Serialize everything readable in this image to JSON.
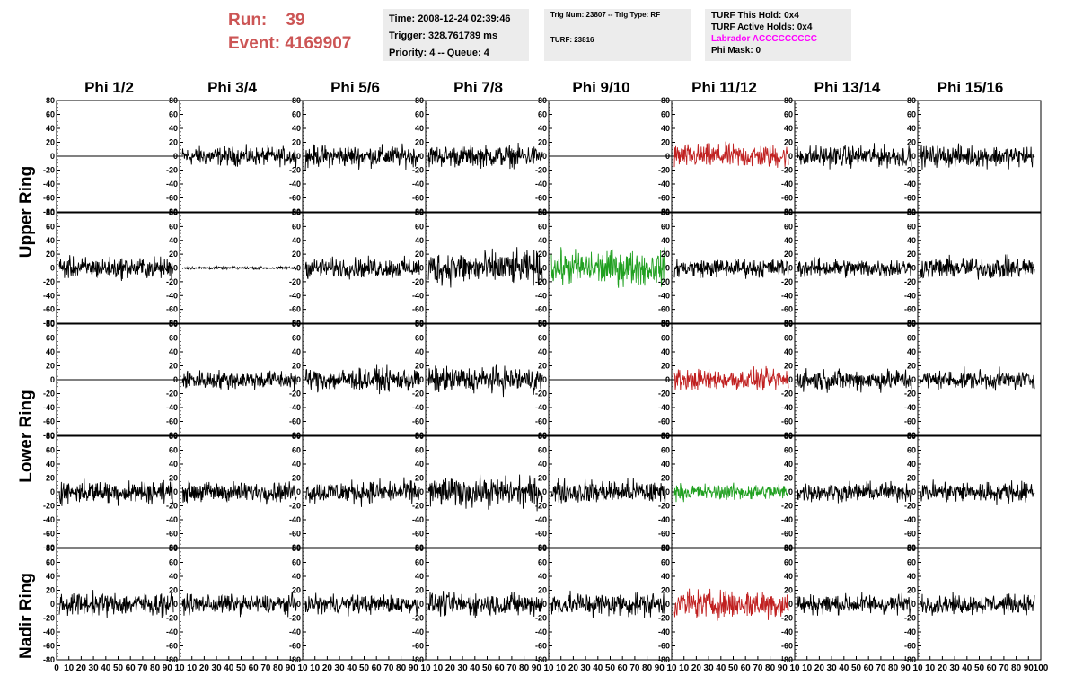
{
  "run": {
    "run_label": "Run:",
    "run_value": "39",
    "event_label": "Event:",
    "event_value": "4169907"
  },
  "info1": {
    "time": "Time: 2008-12-24 02:39:46",
    "trigger": "Trigger: 328.761789 ms",
    "priority": "Priority: 4 -- Queue: 4"
  },
  "info2": {
    "trig": "Trig Num: 23807 -- Trig Type: RF",
    "turf": "TURF: 23816"
  },
  "info3": {
    "hold": "TURF This Hold: 0x4",
    "active": "TURF Active Holds: 0x4",
    "labrador": "Labrador ACCCCCCCCC",
    "mask": "Phi Mask: 0"
  },
  "phi_headers": [
    "Phi 1/2",
    "Phi 3/4",
    "Phi 5/6",
    "Phi 7/8",
    "Phi 9/10",
    "Phi 11/12",
    "Phi 13/14",
    "Phi 15/16"
  ],
  "ring_labels": {
    "upper": "Upper Ring",
    "lower": "Lower Ring",
    "nadir": "Nadir Ring"
  },
  "colors": {
    "run_text": "#cc5555",
    "labrador": "#ff00ff",
    "trace": "#000000",
    "red_trace": "#c02020",
    "green_trace": "#20a020",
    "info_bg": "#ececec"
  },
  "axis": {
    "y_ticks": [
      "80",
      "60",
      "40",
      "20",
      "0",
      "-20",
      "-40",
      "-60",
      "-80"
    ],
    "x_ticks_first": [
      "0",
      "10",
      "20",
      "30",
      "40",
      "50",
      "60",
      "70",
      "80",
      "90",
      "10"
    ],
    "x_ticks": [
      "10",
      "20",
      "30",
      "40",
      "50",
      "60",
      "70",
      "80",
      "90",
      "10"
    ],
    "x_ticks_last": [
      "10",
      "20",
      "30",
      "40",
      "50",
      "60",
      "70",
      "80",
      "90",
      "100"
    ],
    "ylim": [
      -80,
      80
    ],
    "xlim": [
      0,
      100
    ]
  },
  "chart_data": {
    "type": "line",
    "title": "",
    "xlabel": "",
    "ylabel": "",
    "ylim": [
      -80,
      80
    ],
    "xlim": [
      0,
      100
    ],
    "rows": [
      "Upper Ring top",
      "Upper Ring bottom",
      "Lower Ring top",
      "Lower Ring bottom",
      "Nadir Ring"
    ],
    "columns": [
      "Phi 1/2",
      "Phi 3/4",
      "Phi 5/6",
      "Phi 7/8",
      "Phi 9/10",
      "Phi 11/12",
      "Phi 13/14",
      "Phi 15/16"
    ],
    "panels": [
      [
        {
          "style": "flat",
          "amp": 0,
          "color": "trace"
        },
        {
          "style": "noise",
          "amp": 14,
          "color": "trace"
        },
        {
          "style": "noise",
          "amp": 16,
          "color": "trace"
        },
        {
          "style": "noise",
          "amp": 16,
          "color": "trace"
        },
        {
          "style": "flat",
          "amp": 0,
          "color": "trace"
        },
        {
          "style": "noise",
          "amp": 18,
          "color": "red_trace"
        },
        {
          "style": "noise",
          "amp": 16,
          "color": "trace"
        },
        {
          "style": "noise",
          "amp": 16,
          "color": "trace"
        }
      ],
      [
        {
          "style": "noise",
          "amp": 16,
          "color": "trace"
        },
        {
          "style": "noise",
          "amp": 2,
          "color": "trace"
        },
        {
          "style": "noise",
          "amp": 15,
          "color": "trace"
        },
        {
          "style": "noise",
          "amp": 25,
          "color": "trace"
        },
        {
          "style": "noise",
          "amp": 26,
          "color": "green_trace"
        },
        {
          "style": "noise",
          "amp": 14,
          "color": "trace"
        },
        {
          "style": "noise",
          "amp": 14,
          "color": "trace"
        },
        {
          "style": "noise",
          "amp": 16,
          "color": "trace"
        }
      ],
      [
        {
          "style": "flat",
          "amp": 0,
          "color": "trace"
        },
        {
          "style": "noise",
          "amp": 14,
          "color": "trace"
        },
        {
          "style": "noise",
          "amp": 17,
          "color": "trace"
        },
        {
          "style": "noise",
          "amp": 19,
          "color": "trace"
        },
        {
          "style": "flat",
          "amp": 0,
          "color": "trace"
        },
        {
          "style": "noise",
          "amp": 16,
          "color": "red_trace"
        },
        {
          "style": "noise",
          "amp": 16,
          "color": "trace"
        },
        {
          "style": "noise",
          "amp": 14,
          "color": "trace"
        }
      ],
      [
        {
          "style": "noise",
          "amp": 17,
          "color": "trace"
        },
        {
          "style": "noise",
          "amp": 15,
          "color": "trace"
        },
        {
          "style": "noise",
          "amp": 17,
          "color": "trace"
        },
        {
          "style": "noise",
          "amp": 22,
          "color": "trace"
        },
        {
          "style": "noise",
          "amp": 18,
          "color": "trace"
        },
        {
          "style": "noise",
          "amp": 12,
          "color": "green_trace"
        },
        {
          "style": "noise",
          "amp": 14,
          "color": "trace"
        },
        {
          "style": "noise",
          "amp": 16,
          "color": "trace"
        }
      ],
      [
        {
          "style": "noise",
          "amp": 17,
          "color": "trace"
        },
        {
          "style": "noise",
          "amp": 14,
          "color": "trace"
        },
        {
          "style": "noise",
          "amp": 14,
          "color": "trace"
        },
        {
          "style": "noise",
          "amp": 17,
          "color": "trace"
        },
        {
          "style": "noise",
          "amp": 18,
          "color": "trace"
        },
        {
          "style": "noise",
          "amp": 22,
          "color": "red_trace"
        },
        {
          "style": "noise",
          "amp": 15,
          "color": "trace"
        },
        {
          "style": "noise",
          "amp": 14,
          "color": "trace"
        }
      ]
    ]
  }
}
